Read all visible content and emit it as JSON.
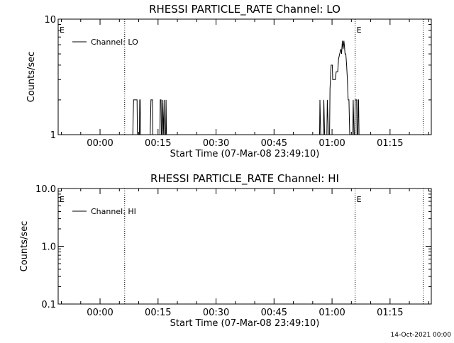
{
  "chart_data": [
    {
      "type": "line",
      "title": "RHESSI PARTICLE_RATE Channel: LO",
      "xlabel": "Start Time (07-Mar-08 23:49:10)",
      "ylabel": "Counts/sec",
      "yscale": "log",
      "ylim": [
        1,
        10
      ],
      "ytick_labels": [
        "1",
        "10"
      ],
      "xticks": [
        {
          "min": 10.83,
          "label": "00:00"
        },
        {
          "min": 25.83,
          "label": "00:15"
        },
        {
          "min": 40.83,
          "label": "00:30"
        },
        {
          "min": 55.83,
          "label": "00:45"
        },
        {
          "min": 70.83,
          "label": "01:00"
        },
        {
          "min": 85.83,
          "label": "01:15"
        }
      ],
      "xlim_minutes_after_start": [
        0,
        96.5
      ],
      "vlines_minutes_after_start": [
        17.2,
        76.8,
        94.4
      ],
      "markers": [
        {
          "label": "E",
          "at": 0,
          "label_side": "right"
        },
        {
          "label": "E",
          "at": 76.8,
          "label_side": "right"
        }
      ],
      "legend": {
        "location": "top-left",
        "entries": [
          "Channel: LO"
        ]
      },
      "series": [
        {
          "name": "Channel: LO",
          "points": [
            [
              0,
              1
            ],
            [
              19.3,
              1
            ],
            [
              19.5,
              2
            ],
            [
              20.4,
              2
            ],
            [
              20.5,
              1
            ],
            [
              21.0,
              1
            ],
            [
              21.1,
              2
            ],
            [
              21.2,
              2
            ],
            [
              21.3,
              1
            ],
            [
              23.8,
              1
            ],
            [
              24.0,
              2
            ],
            [
              24.4,
              2
            ],
            [
              24.5,
              1
            ],
            [
              26.3,
              1
            ],
            [
              26.4,
              2
            ],
            [
              26.6,
              2
            ],
            [
              26.7,
              1
            ],
            [
              26.9,
              1
            ],
            [
              27.0,
              2
            ],
            [
              27.2,
              1
            ],
            [
              27.4,
              2
            ],
            [
              27.5,
              1
            ],
            [
              27.8,
              1
            ],
            [
              27.9,
              2
            ],
            [
              28.0,
              1
            ],
            [
              67.6,
              1
            ],
            [
              67.7,
              2
            ],
            [
              67.9,
              1
            ],
            [
              68.6,
              1
            ],
            [
              68.7,
              2
            ],
            [
              68.9,
              1
            ],
            [
              69.5,
              1
            ],
            [
              69.6,
              2
            ],
            [
              69.9,
              1
            ],
            [
              70.2,
              1
            ],
            [
              70.3,
              2.5
            ],
            [
              70.6,
              4
            ],
            [
              70.9,
              4
            ],
            [
              71.0,
              3
            ],
            [
              71.7,
              3
            ],
            [
              71.9,
              3.5
            ],
            [
              72.3,
              3.5
            ],
            [
              72.5,
              4.5
            ],
            [
              72.8,
              5
            ],
            [
              73.1,
              5.5
            ],
            [
              73.3,
              5
            ],
            [
              73.5,
              6.5
            ],
            [
              73.7,
              5.5
            ],
            [
              73.9,
              6.5
            ],
            [
              74.0,
              6
            ],
            [
              74.2,
              5
            ],
            [
              74.4,
              5
            ],
            [
              74.6,
              4
            ],
            [
              74.8,
              3
            ],
            [
              75.0,
              2
            ],
            [
              75.2,
              2
            ],
            [
              75.4,
              1
            ],
            [
              76.2,
              1
            ],
            [
              76.3,
              2
            ],
            [
              76.5,
              1
            ],
            [
              76.7,
              1
            ],
            [
              76.8,
              2
            ],
            [
              77.2,
              2
            ],
            [
              77.3,
              1
            ],
            [
              77.5,
              1
            ],
            [
              77.6,
              2
            ],
            [
              77.7,
              2
            ],
            [
              77.8,
              1
            ]
          ]
        }
      ]
    },
    {
      "type": "line",
      "title": "RHESSI PARTICLE_RATE Channel: HI",
      "xlabel": "Start Time (07-Mar-08 23:49:10)",
      "ylabel": "Counts/sec",
      "yscale": "log",
      "ylim": [
        0.1,
        10
      ],
      "ytick_labels": [
        "0.1",
        "1.0",
        "10.0"
      ],
      "xticks": [
        {
          "min": 10.83,
          "label": "00:00"
        },
        {
          "min": 25.83,
          "label": "00:15"
        },
        {
          "min": 40.83,
          "label": "00:30"
        },
        {
          "min": 55.83,
          "label": "00:45"
        },
        {
          "min": 70.83,
          "label": "01:00"
        },
        {
          "min": 85.83,
          "label": "01:15"
        }
      ],
      "xlim_minutes_after_start": [
        0,
        96.5
      ],
      "vlines_minutes_after_start": [
        17.2,
        76.8,
        94.4
      ],
      "markers": [
        {
          "label": "E",
          "at": 0,
          "label_side": "right"
        },
        {
          "label": "E",
          "at": 76.8,
          "label_side": "right"
        }
      ],
      "legend": {
        "location": "top-left",
        "entries": [
          "Channel: HI"
        ]
      },
      "series": [
        {
          "name": "Channel: HI",
          "points": []
        }
      ]
    }
  ],
  "footer": {
    "timestamp": "14-Oct-2021 00:00"
  }
}
